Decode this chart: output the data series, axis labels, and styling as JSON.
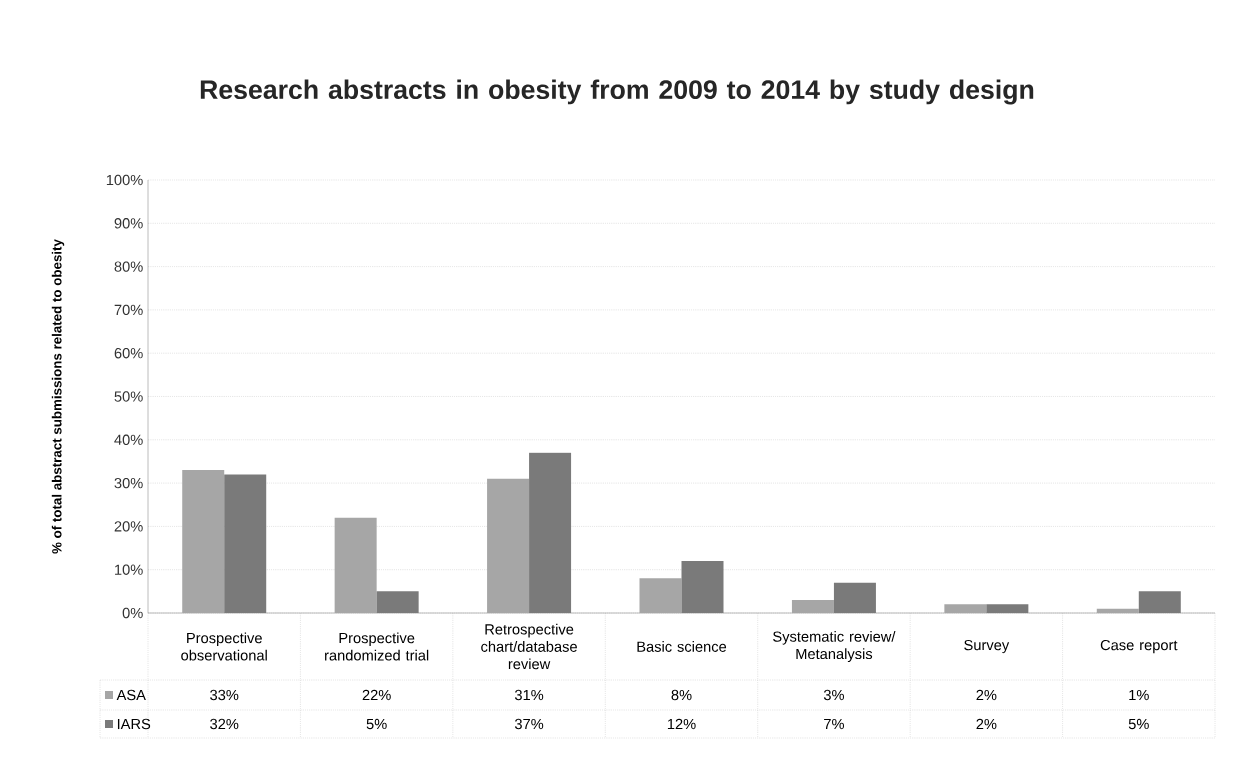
{
  "chart_data": {
    "type": "bar",
    "title": "Research abstracts in obesity from 2009 to 2014 by study design",
    "ylabel": "% of total abstract submissions related to obesity",
    "categories": [
      "Prospective observational",
      "Prospective randomized trial",
      "Retrospective chart/database review",
      "Basic science",
      "Systematic review/ Metanalysis",
      "Survey",
      "Case report"
    ],
    "series": [
      {
        "name": "ASA",
        "color": "#a6a6a6",
        "values": [
          33,
          22,
          31,
          8,
          3,
          2,
          1
        ],
        "value_labels": [
          "33%",
          "22%",
          "31%",
          "8%",
          "3%",
          "2%",
          "1%"
        ]
      },
      {
        "name": "IARS",
        "color": "#7a7a7a",
        "values": [
          32,
          5,
          37,
          12,
          7,
          2,
          5
        ],
        "value_labels": [
          "32%",
          "5%",
          "37%",
          "12%",
          "7%",
          "2%",
          "5%"
        ]
      }
    ],
    "ylim": [
      0,
      100
    ],
    "yticks": [
      {
        "value": 0,
        "label": "0%"
      },
      {
        "value": 10,
        "label": "10%"
      },
      {
        "value": 20,
        "label": "20%"
      },
      {
        "value": 30,
        "label": "30%"
      },
      {
        "value": 40,
        "label": "40%"
      },
      {
        "value": 50,
        "label": "50%"
      },
      {
        "value": 60,
        "label": "60%"
      },
      {
        "value": 70,
        "label": "70%"
      },
      {
        "value": 80,
        "label": "80%"
      },
      {
        "value": 90,
        "label": "90%"
      },
      {
        "value": 100,
        "label": "100%"
      }
    ],
    "grid": "y",
    "legend": "bottom"
  }
}
